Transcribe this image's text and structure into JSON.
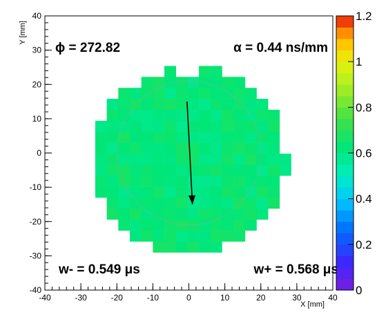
{
  "chart_data": {
    "type": "heatmap",
    "xlabel": "X [mm]",
    "ylabel": "Y [mm]",
    "xlim": [
      -40,
      40
    ],
    "ylim": [
      -40,
      40
    ],
    "x_ticks": [
      "-40",
      "-30",
      "-20",
      "-10",
      "0",
      "10",
      "20",
      "30",
      "40"
    ],
    "y_ticks": [
      "-40",
      "-30",
      "-20",
      "-10",
      "0",
      "10",
      "20",
      "30",
      "40"
    ],
    "zlim": [
      0,
      1.2
    ],
    "z_ticks": [
      "0",
      "0.2",
      "0.4",
      "0.6",
      "0.8",
      "1",
      "1.2"
    ],
    "cell_size_mm": 3.2,
    "typical_value": 0.63,
    "annotations": {
      "phi": "ϕ = 272.82",
      "alpha": "α = 0.44 ns/mm",
      "w_minus": "w- = 0.549 μs",
      "w_plus": "w+ = 0.568 μs"
    },
    "arrow": {
      "from": [
        -0.5,
        15
      ],
      "to": [
        1.0,
        -15
      ]
    },
    "circle": {
      "center": [
        0,
        0
      ],
      "radius": 20
    },
    "grid": false
  }
}
